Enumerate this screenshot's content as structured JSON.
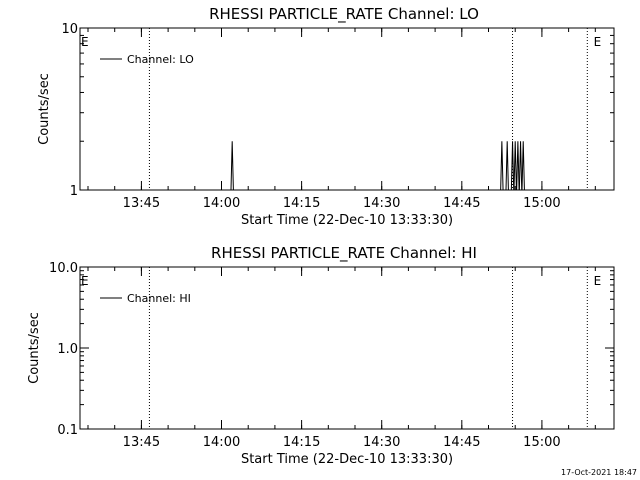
{
  "footer_date": "17-Oct-2021 18:47",
  "chart_data": [
    {
      "type": "line",
      "title": "RHESSI PARTICLE_RATE Channel: LO",
      "xlabel": "Start Time (22-Dec-10 13:33:30)",
      "ylabel": "Counts/sec",
      "ylog": true,
      "ylim": [
        1,
        10
      ],
      "y_ticks": [
        1,
        10
      ],
      "y_tick_labels": [
        "1",
        "10"
      ],
      "xlim": [
        "13:33:30",
        "15:13:30"
      ],
      "x_ticks": [
        "13:45",
        "14:00",
        "14:15",
        "14:30",
        "14:45",
        "15:00"
      ],
      "x_tick_labels": [
        "13:45",
        "14:00",
        "14:15",
        "14:30",
        "14:45",
        "15:00"
      ],
      "legend": {
        "label": "Channel: LO",
        "placement": "top-left"
      },
      "markers": [
        {
          "time": "13:33:30",
          "label": "E"
        },
        {
          "time": "15:09:30",
          "label": "E"
        }
      ],
      "dotted_lines": [
        "13:46:30",
        "14:54:30",
        "15:08:30"
      ],
      "spikes": [
        {
          "time": "14:02:00",
          "value": 2
        },
        {
          "time": "14:52:30",
          "value": 2
        },
        {
          "time": "14:53:30",
          "value": 2
        },
        {
          "time": "14:54:30",
          "value": 2
        },
        {
          "time": "14:55:00",
          "value": 2
        },
        {
          "time": "14:55:30",
          "value": 2
        },
        {
          "time": "14:56:00",
          "value": 2
        },
        {
          "time": "14:56:30",
          "value": 2
        }
      ]
    },
    {
      "type": "line",
      "title": "RHESSI PARTICLE_RATE Channel: HI",
      "xlabel": "Start Time (22-Dec-10 13:33:30)",
      "ylabel": "Counts/sec",
      "ylog": true,
      "ylim": [
        0.1,
        10
      ],
      "y_ticks": [
        0.1,
        1,
        10
      ],
      "y_tick_labels": [
        "0.1",
        "1.0",
        "10.0"
      ],
      "xlim": [
        "13:33:30",
        "15:13:30"
      ],
      "x_ticks": [
        "13:45",
        "14:00",
        "14:15",
        "14:30",
        "14:45",
        "15:00"
      ],
      "x_tick_labels": [
        "13:45",
        "14:00",
        "14:15",
        "14:30",
        "14:45",
        "15:00"
      ],
      "legend": {
        "label": "Channel: HI",
        "placement": "top-left"
      },
      "markers": [
        {
          "time": "13:33:30",
          "label": "E"
        },
        {
          "time": "15:09:30",
          "label": "E"
        }
      ],
      "dotted_lines": [
        "13:46:30",
        "14:54:30",
        "15:08:30"
      ],
      "spikes": []
    }
  ]
}
